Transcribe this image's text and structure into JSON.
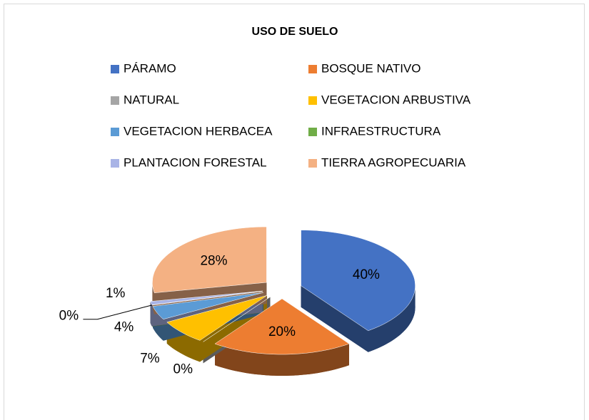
{
  "chart_data": {
    "type": "pie",
    "title": "USO DE SUELO",
    "categories": [
      "PÁRAMO",
      "BOSQUE NATIVO",
      "NATURAL",
      "VEGETACION ARBUSTIVA",
      "VEGETACION HERBACEA",
      "INFRAESTRUCTURA",
      "PLANTACION FORESTAL",
      "TIERRA AGROPECUARIA"
    ],
    "values": [
      40,
      20,
      0,
      7,
      4,
      0,
      1,
      28
    ],
    "value_labels": [
      "40%",
      "20%",
      "0%",
      "7%",
      "4%",
      "0%",
      "1%",
      "28%"
    ],
    "colors": [
      "#4472c4",
      "#ed7d31",
      "#a5a5a5",
      "#ffc000",
      "#5b9bd5",
      "#70ad47",
      "#a9b4e6",
      "#f4b183"
    ],
    "legend": "top"
  }
}
